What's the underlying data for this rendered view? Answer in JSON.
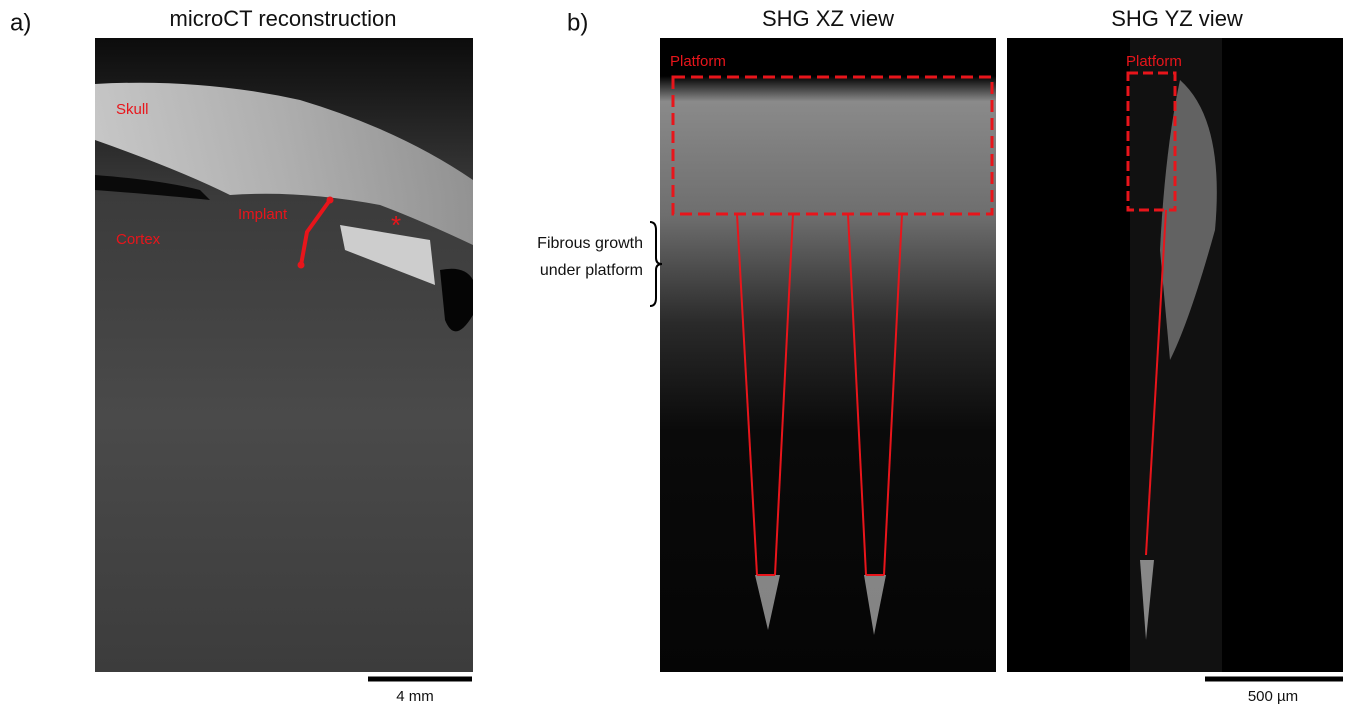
{
  "panel_a": {
    "tag": "a)",
    "title": "microCT reconstruction",
    "labels": {
      "skull": "Skull",
      "cortex": "Cortex",
      "implant": "Implant",
      "marker": "*"
    },
    "scale_bar": "4 mm"
  },
  "panel_b": {
    "tag": "b)",
    "views": [
      {
        "title": "SHG XZ view",
        "label": "Platform"
      },
      {
        "title": "SHG YZ view",
        "label": "Platform"
      }
    ],
    "note": [
      "Fibrous growth",
      "under platform"
    ],
    "scale_bar": "500 µm"
  }
}
